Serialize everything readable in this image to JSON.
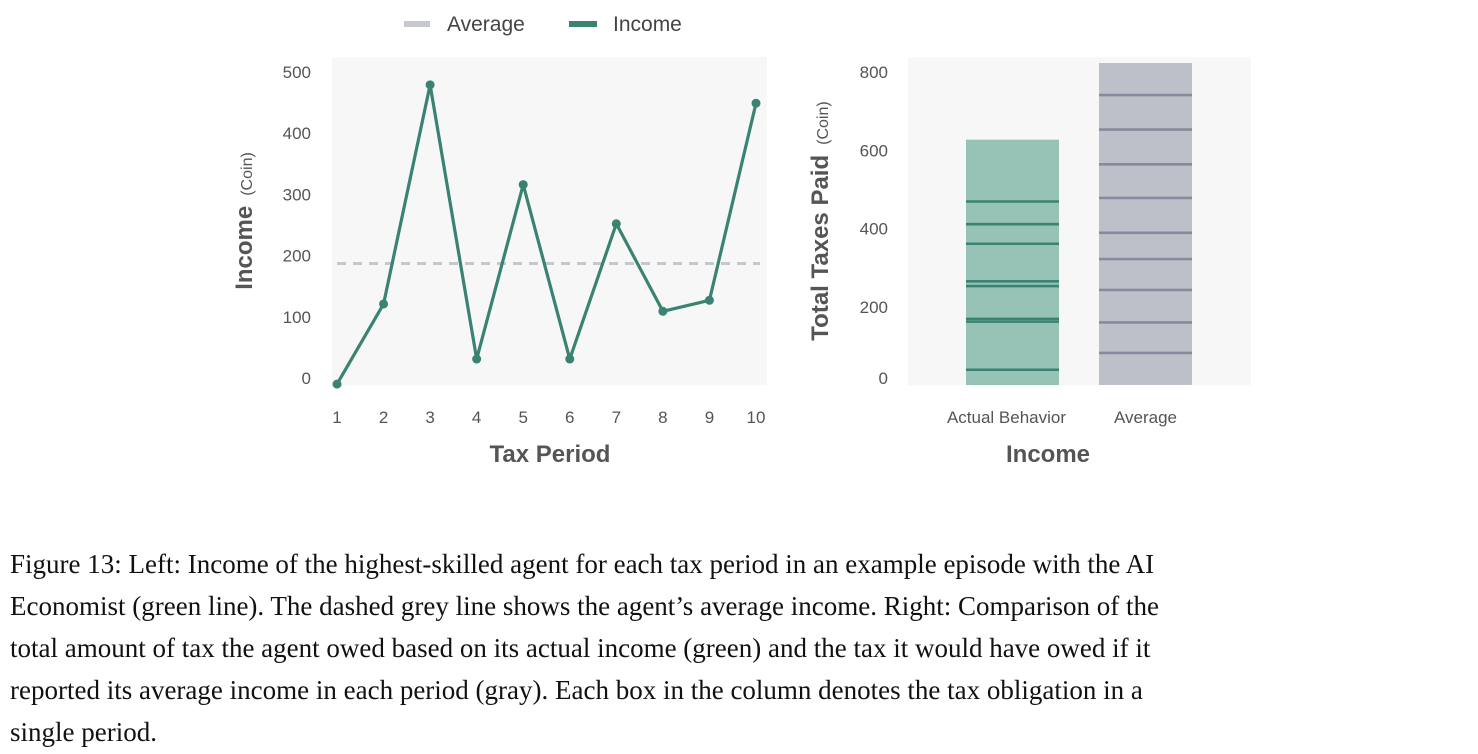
{
  "legend": {
    "average_label": "Average",
    "income_label": "Income"
  },
  "colors": {
    "income": "#3a8272",
    "income_fill": "#97c2b6",
    "average": "#c5c8cf",
    "average_fill": "#bec0c9",
    "average_band": "#878a9c",
    "panel_bg": "#f7f7f7"
  },
  "chart_data": [
    {
      "type": "line",
      "xlabel": "Tax Period",
      "ylabel": "Income",
      "ylabel_unit": "(Coin)",
      "x": [
        1,
        2,
        3,
        4,
        5,
        6,
        7,
        8,
        9,
        10
      ],
      "xticks": [
        "1",
        "2",
        "3",
        "4",
        "5",
        "6",
        "7",
        "8",
        "9",
        "10"
      ],
      "yticks": [
        0,
        100,
        200,
        300,
        400,
        500
      ],
      "ylim": [
        -10,
        520
      ],
      "series": [
        {
          "name": "Income",
          "values": [
            -10,
            121,
            479,
            31,
            316,
            31,
            252,
            109,
            127,
            449
          ]
        },
        {
          "name": "Average",
          "style": "dashed",
          "values": [
            187,
            187,
            187,
            187,
            187,
            187,
            187,
            187,
            187,
            187
          ]
        }
      ],
      "grid": false,
      "legend": "top-center"
    },
    {
      "type": "bar",
      "stacked": true,
      "xlabel": "Income",
      "ylabel": "Total Taxes Paid",
      "ylabel_unit": "(Coin)",
      "categories": [
        "Actual Behavior",
        "Average"
      ],
      "yticks": [
        0,
        200,
        400,
        600,
        800
      ],
      "ylim": [
        0,
        860
      ],
      "totals": [
        627,
        823
      ],
      "segment_boundaries": [
        [
          39,
          162,
          169,
          253,
          265,
          361,
          411,
          469
        ],
        [
          82,
          160,
          243,
          322,
          389,
          478,
          564,
          653,
          741
        ]
      ],
      "grid": false
    }
  ],
  "caption": "Figure 13: Left: Income of the highest-skilled agent for each tax period in an example episode with the AI\nEconomist (green line). The dashed grey line shows the agent’s average income. Right: Comparison of the\ntotal amount of tax the agent owed based on its actual income (green) and the tax it would have owed if it\nreported its average income in each period (gray). Each box in the column denotes the tax obligation in a\nsingle period."
}
